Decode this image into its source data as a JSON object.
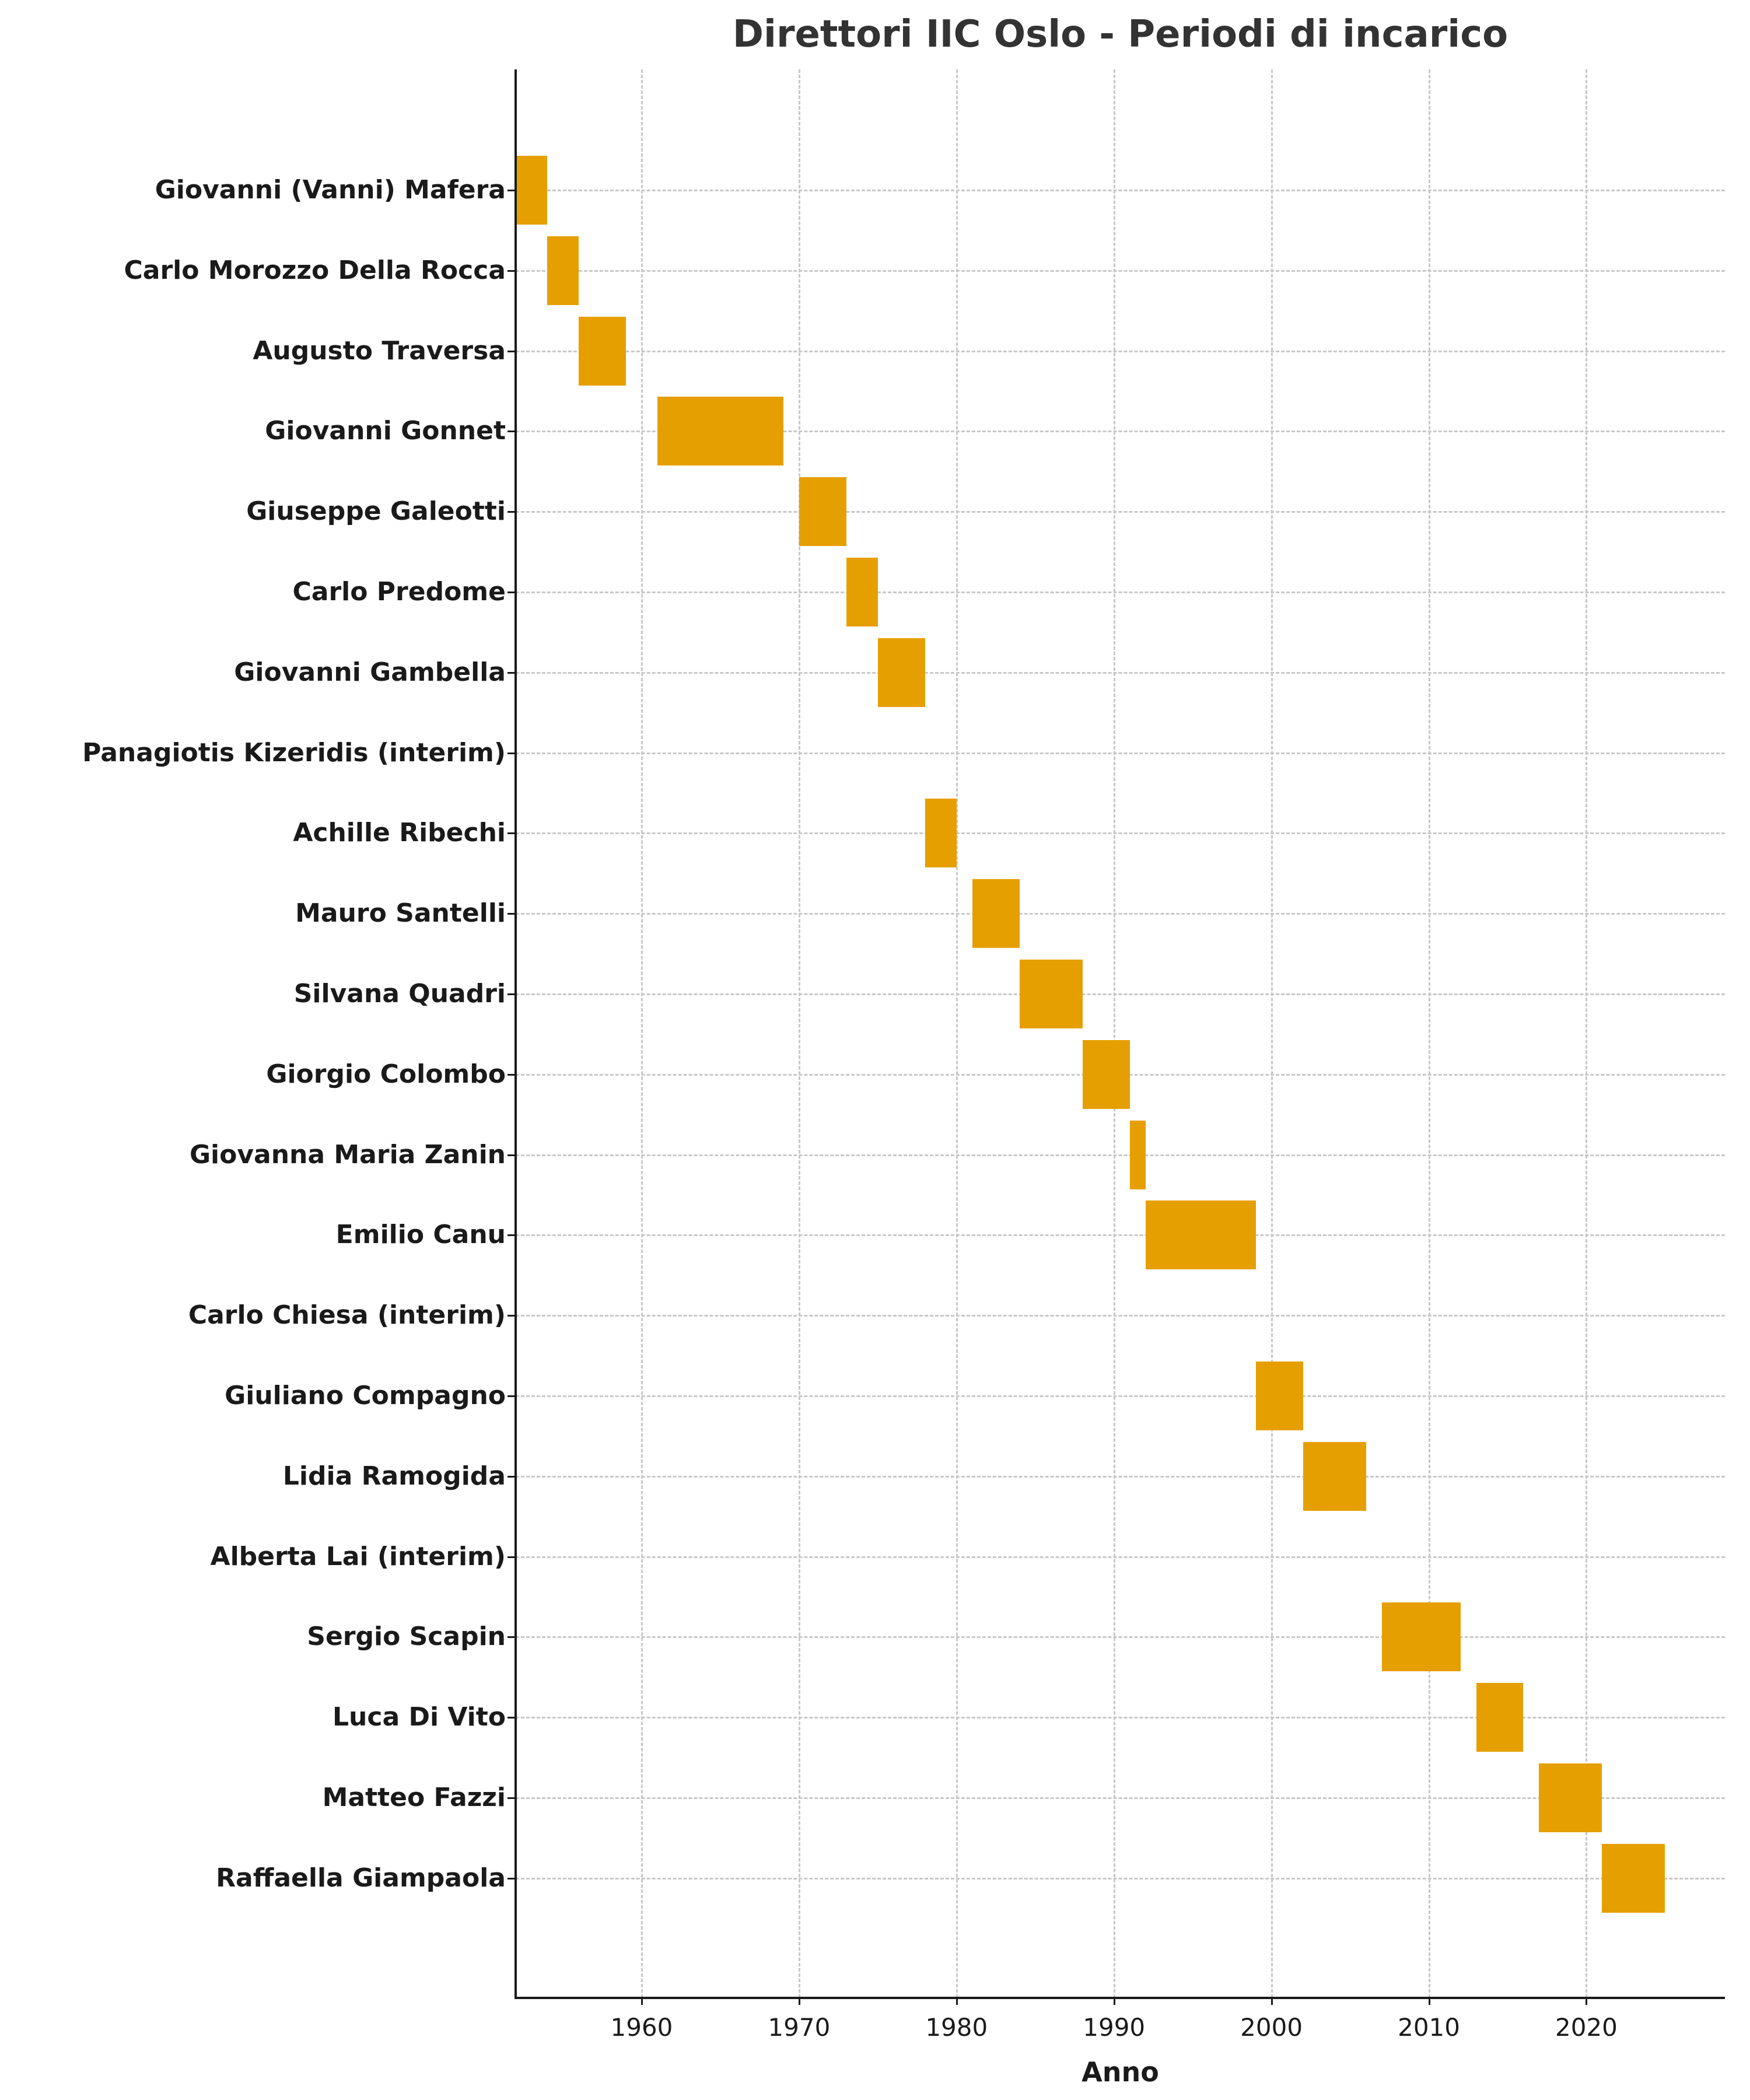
{
  "chart_data": {
    "type": "bar",
    "orientation": "horizontal-gantt",
    "title": "Direttori IIC Oslo - Periodi di incarico",
    "xlabel": "Anno",
    "ylabel": "",
    "xlim": [
      1952,
      2028.8
    ],
    "xticks": [
      1960,
      1970,
      1980,
      1990,
      2000,
      2010,
      2020
    ],
    "grid": true,
    "bar_color": "#E69F00",
    "legend": null,
    "categories": [
      "Giovanni (Vanni) Mafera",
      "Carlo Morozzo Della Rocca",
      "Augusto Traversa",
      "Giovanni Gonnet",
      "Giuseppe Galeotti",
      "Carlo Predome",
      "Giovanni Gambella",
      "Panagiotis Kizeridis (interim)",
      "Achille Ribechi",
      "Mauro Santelli",
      "Silvana Quadri",
      "Giorgio Colombo",
      "Giovanna Maria Zanin",
      "Emilio Canu",
      "Carlo Chiesa (interim)",
      "Giuliano Compagno",
      "Lidia Ramogida",
      "Alberta Lai (interim)",
      "Sergio Scapin",
      "Luca Di Vito",
      "Matteo Fazzi",
      "Raffaella Giampaola"
    ],
    "series": [
      {
        "name": "Periodo di incarico",
        "values": [
          {
            "start": 1952,
            "end": 1954
          },
          {
            "start": 1954,
            "end": 1956
          },
          {
            "start": 1956,
            "end": 1959
          },
          {
            "start": 1961,
            "end": 1969
          },
          {
            "start": 1970,
            "end": 1973
          },
          {
            "start": 1973,
            "end": 1975
          },
          {
            "start": 1975,
            "end": 1978
          },
          null,
          {
            "start": 1978,
            "end": 1980
          },
          {
            "start": 1981,
            "end": 1984
          },
          {
            "start": 1984,
            "end": 1988
          },
          {
            "start": 1988,
            "end": 1991
          },
          {
            "start": 1991,
            "end": 1992
          },
          {
            "start": 1992,
            "end": 1999
          },
          null,
          {
            "start": 1999,
            "end": 2002
          },
          {
            "start": 2002,
            "end": 2006
          },
          null,
          {
            "start": 2007,
            "end": 2012
          },
          {
            "start": 2013,
            "end": 2016
          },
          {
            "start": 2017,
            "end": 2021
          },
          {
            "start": 2021,
            "end": 2025
          }
        ]
      }
    ]
  },
  "labels": {
    "title": "Direttori IIC Oslo - Periodi di incarico",
    "xaxis_title": "Anno",
    "xticks": [
      "1960",
      "1970",
      "1980",
      "1990",
      "2000",
      "2010",
      "2020"
    ],
    "rows": [
      "Giovanni (Vanni) Mafera",
      "Carlo Morozzo Della Rocca",
      "Augusto Traversa",
      "Giovanni Gonnet",
      "Giuseppe Galeotti",
      "Carlo Predome",
      "Giovanni Gambella",
      "Panagiotis Kizeridis (interim)",
      "Achille Ribechi",
      "Mauro Santelli",
      "Silvana Quadri",
      "Giorgio Colombo",
      "Giovanna Maria Zanin",
      "Emilio Canu",
      "Carlo Chiesa (interim)",
      "Giuliano Compagno",
      "Lidia Ramogida",
      "Alberta Lai (interim)",
      "Sergio Scapin",
      "Luca Di Vito",
      "Matteo Fazzi",
      "Raffaella Giampaola"
    ]
  }
}
